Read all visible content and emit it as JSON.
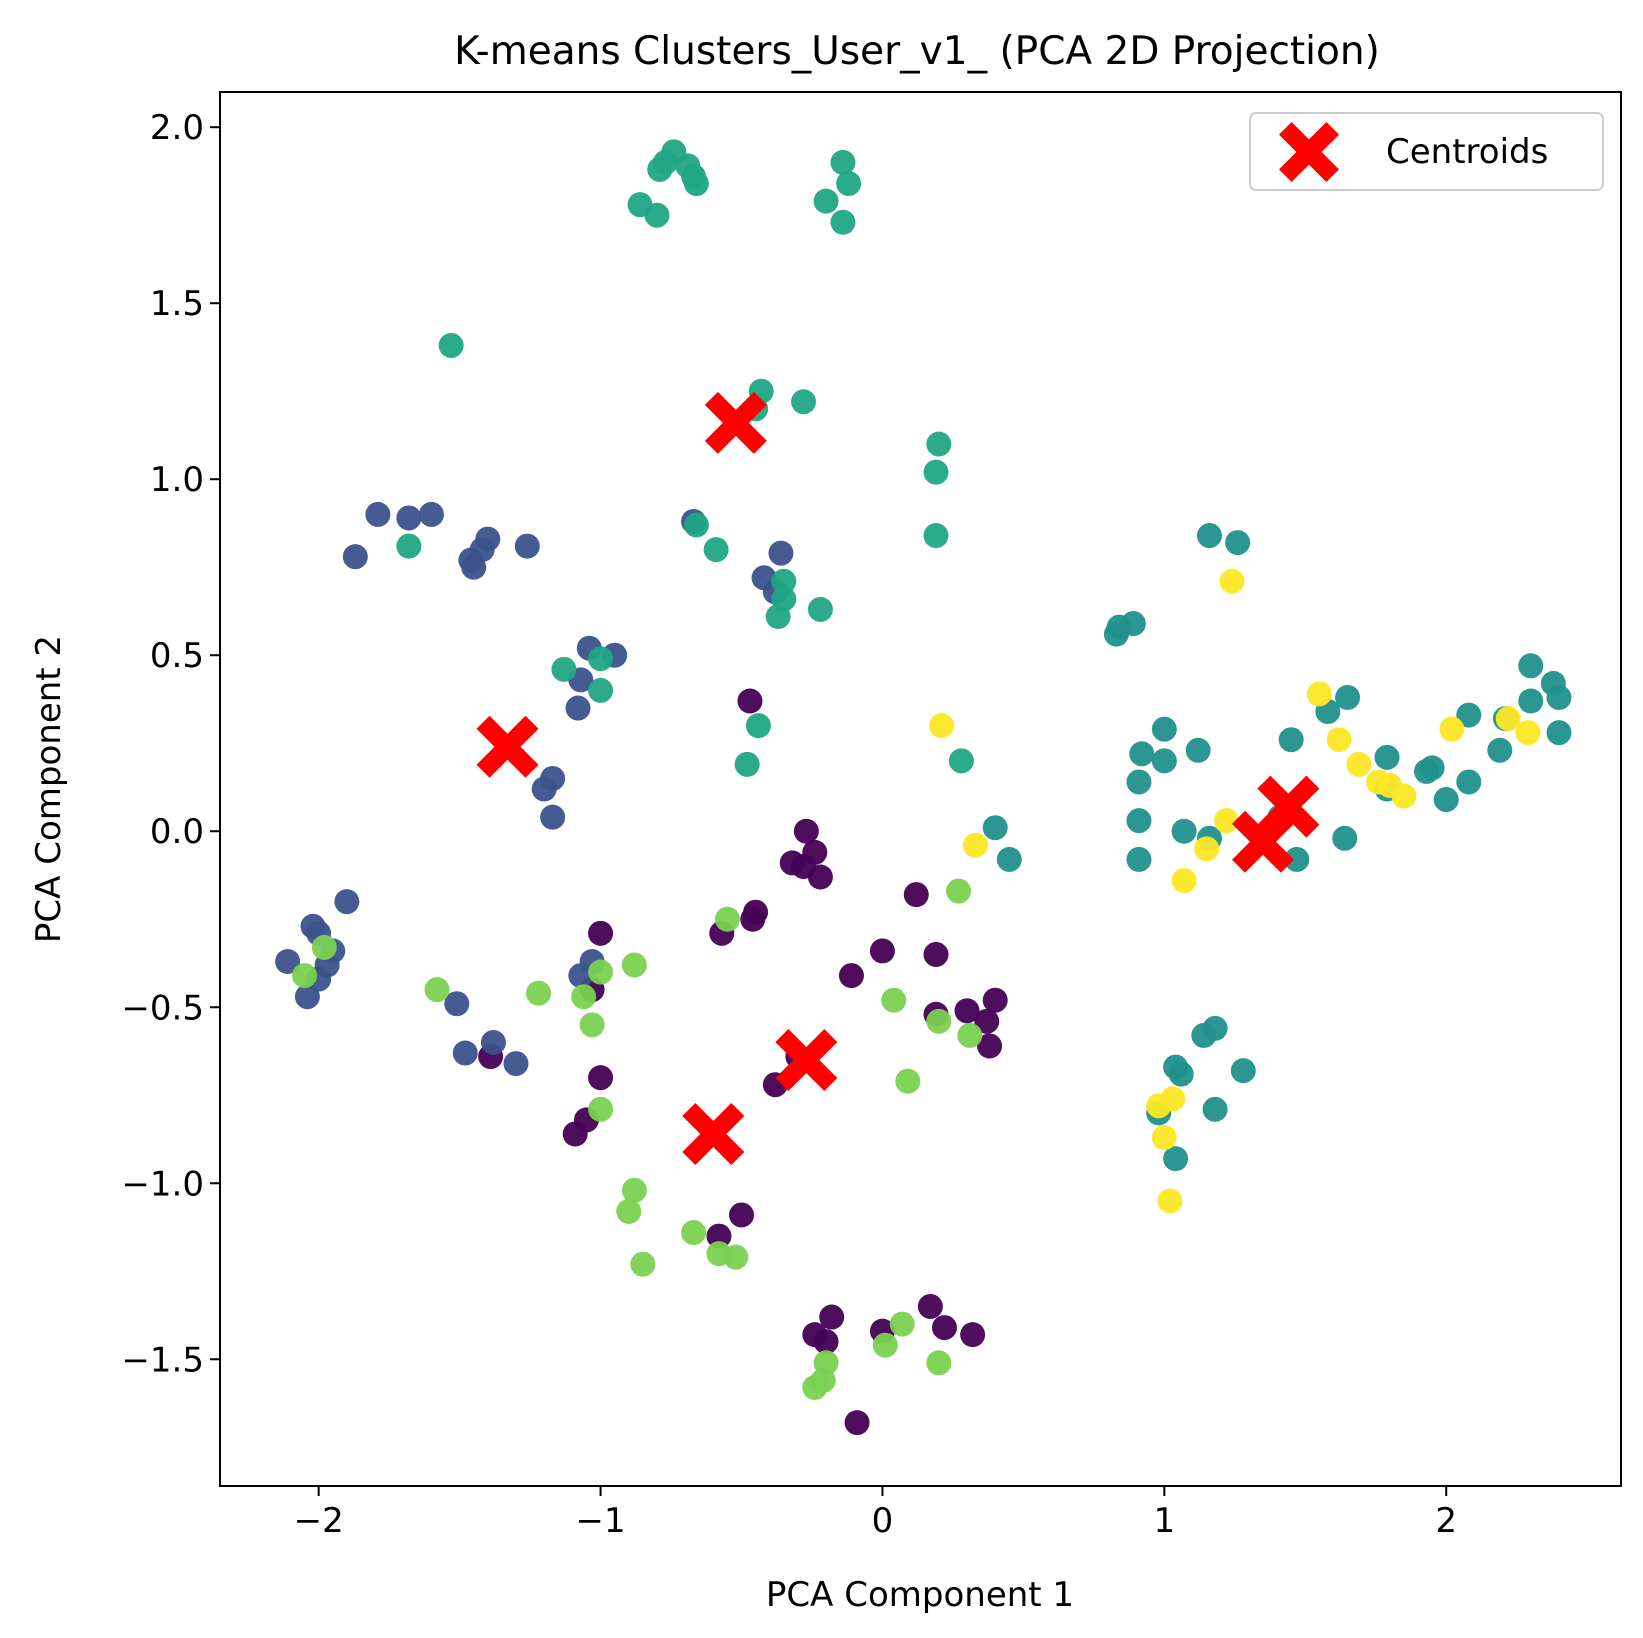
{
  "chart_data": {
    "type": "scatter",
    "title": "K-means Clusters_User_v1_ (PCA 2D Projection)",
    "xlabel": "PCA Component 1",
    "ylabel": "PCA Component 2",
    "xlim": [
      -2.35,
      2.62
    ],
    "ylim": [
      -1.86,
      2.1
    ],
    "xticks": [
      {
        "value": -2,
        "label": "−2"
      },
      {
        "value": -1,
        "label": "−1"
      },
      {
        "value": 0,
        "label": "0"
      },
      {
        "value": 1,
        "label": "1"
      },
      {
        "value": 2,
        "label": "2"
      }
    ],
    "yticks": [
      {
        "value": 2.0,
        "label": "2.0"
      },
      {
        "value": 1.5,
        "label": "1.5"
      },
      {
        "value": 1.0,
        "label": "1.0"
      },
      {
        "value": 0.5,
        "label": "0.5"
      },
      {
        "value": 0.0,
        "label": "0.0"
      },
      {
        "value": -0.5,
        "label": "−0.5"
      },
      {
        "value": -1.0,
        "label": "−1.0"
      },
      {
        "value": -1.5,
        "label": "−1.5"
      }
    ],
    "grid": false,
    "legend": {
      "position": "top-right",
      "entries": [
        "Centroids"
      ]
    },
    "cluster_colors": [
      "#440154",
      "#3b528b",
      "#21908d",
      "#21a685",
      "#7ad151",
      "#fde725"
    ],
    "centroid_color": "#ff0000",
    "series": [
      {
        "cluster": 0,
        "points": [
          [
            -0.47,
            0.37
          ],
          [
            -0.27,
            0.0
          ],
          [
            -0.24,
            -0.06
          ],
          [
            -0.32,
            -0.09
          ],
          [
            -0.22,
            -0.13
          ],
          [
            -0.28,
            -0.1
          ],
          [
            -0.45,
            -0.23
          ],
          [
            -0.46,
            -0.25
          ],
          [
            -0.57,
            -0.29
          ],
          [
            -1.0,
            -0.29
          ],
          [
            0.12,
            -0.18
          ],
          [
            -0.11,
            -0.41
          ],
          [
            0.0,
            -0.34
          ],
          [
            0.19,
            -0.35
          ],
          [
            0.4,
            -0.48
          ],
          [
            0.3,
            -0.51
          ],
          [
            0.37,
            -0.54
          ],
          [
            0.38,
            -0.61
          ],
          [
            0.19,
            -0.52
          ],
          [
            -1.03,
            -0.45
          ],
          [
            -1.0,
            -0.7
          ],
          [
            -1.05,
            -0.82
          ],
          [
            -1.09,
            -0.86
          ],
          [
            -0.38,
            -0.72
          ],
          [
            -0.3,
            -0.64
          ],
          [
            -0.5,
            -1.09
          ],
          [
            -0.58,
            -1.15
          ],
          [
            -0.18,
            -1.38
          ],
          [
            -0.24,
            -1.43
          ],
          [
            -0.2,
            -1.45
          ],
          [
            0.0,
            -1.42
          ],
          [
            0.17,
            -1.35
          ],
          [
            0.22,
            -1.41
          ],
          [
            0.32,
            -1.43
          ],
          [
            -0.09,
            -1.68
          ],
          [
            -1.39,
            -0.64
          ]
        ]
      },
      {
        "cluster": 1,
        "points": [
          [
            -1.87,
            0.78
          ],
          [
            -1.79,
            0.9
          ],
          [
            -1.68,
            0.89
          ],
          [
            -1.6,
            0.9
          ],
          [
            -1.4,
            0.83
          ],
          [
            -1.42,
            0.8
          ],
          [
            -1.46,
            0.77
          ],
          [
            -1.45,
            0.75
          ],
          [
            -1.26,
            0.81
          ],
          [
            -0.67,
            0.88
          ],
          [
            -0.36,
            0.79
          ],
          [
            -0.42,
            0.72
          ],
          [
            -0.38,
            0.68
          ],
          [
            -1.04,
            0.52
          ],
          [
            -0.95,
            0.5
          ],
          [
            -1.07,
            0.43
          ],
          [
            -1.08,
            0.35
          ],
          [
            -1.17,
            0.15
          ],
          [
            -1.2,
            0.12
          ],
          [
            -1.17,
            0.04
          ],
          [
            -1.9,
            -0.2
          ],
          [
            -2.02,
            -0.27
          ],
          [
            -2.0,
            -0.29
          ],
          [
            -1.95,
            -0.34
          ],
          [
            -1.97,
            -0.38
          ],
          [
            -2.11,
            -0.37
          ],
          [
            -2.0,
            -0.42
          ],
          [
            -2.04,
            -0.47
          ],
          [
            -1.51,
            -0.49
          ],
          [
            -1.03,
            -0.37
          ],
          [
            -1.07,
            -0.41
          ],
          [
            -1.38,
            -0.6
          ],
          [
            -1.48,
            -0.63
          ],
          [
            -1.3,
            -0.66
          ]
        ]
      },
      {
        "cluster": 2,
        "points": [
          [
            1.16,
            0.84
          ],
          [
            1.26,
            0.82
          ],
          [
            0.83,
            0.56
          ],
          [
            0.84,
            0.58
          ],
          [
            0.89,
            0.59
          ],
          [
            1.0,
            0.29
          ],
          [
            0.92,
            0.22
          ],
          [
            1.0,
            0.2
          ],
          [
            1.12,
            0.23
          ],
          [
            0.91,
            0.14
          ],
          [
            1.45,
            0.26
          ],
          [
            1.65,
            0.38
          ],
          [
            1.58,
            0.34
          ],
          [
            1.79,
            0.21
          ],
          [
            1.79,
            0.12
          ],
          [
            1.93,
            0.17
          ],
          [
            1.95,
            0.18
          ],
          [
            2.0,
            0.09
          ],
          [
            2.08,
            0.33
          ],
          [
            2.08,
            0.14
          ],
          [
            2.19,
            0.23
          ],
          [
            2.21,
            0.32
          ],
          [
            2.3,
            0.47
          ],
          [
            2.3,
            0.37
          ],
          [
            2.38,
            0.42
          ],
          [
            2.4,
            0.38
          ],
          [
            2.4,
            0.28
          ],
          [
            0.91,
            0.03
          ],
          [
            1.07,
            0.0
          ],
          [
            1.16,
            -0.02
          ],
          [
            1.41,
            0.04
          ],
          [
            1.47,
            -0.08
          ],
          [
            1.64,
            -0.02
          ],
          [
            0.91,
            -0.08
          ],
          [
            0.4,
            0.01
          ],
          [
            0.45,
            -0.08
          ],
          [
            1.14,
            -0.58
          ],
          [
            1.18,
            -0.56
          ],
          [
            1.04,
            -0.67
          ],
          [
            1.06,
            -0.69
          ],
          [
            1.28,
            -0.68
          ],
          [
            0.98,
            -0.8
          ],
          [
            1.18,
            -0.79
          ],
          [
            1.04,
            -0.93
          ]
        ]
      },
      {
        "cluster": 3,
        "points": [
          [
            -0.74,
            1.93
          ],
          [
            -0.77,
            1.9
          ],
          [
            -0.69,
            1.89
          ],
          [
            -0.79,
            1.88
          ],
          [
            -0.67,
            1.86
          ],
          [
            -0.66,
            1.84
          ],
          [
            -0.86,
            1.78
          ],
          [
            -0.8,
            1.75
          ],
          [
            -0.14,
            1.9
          ],
          [
            -0.12,
            1.84
          ],
          [
            -0.2,
            1.79
          ],
          [
            -0.14,
            1.73
          ],
          [
            -1.53,
            1.38
          ],
          [
            -0.43,
            1.25
          ],
          [
            -0.28,
            1.22
          ],
          [
            -0.45,
            1.2
          ],
          [
            0.2,
            1.1
          ],
          [
            0.19,
            1.02
          ],
          [
            0.19,
            0.84
          ],
          [
            -1.68,
            0.81
          ],
          [
            -0.66,
            0.87
          ],
          [
            -0.59,
            0.8
          ],
          [
            -0.35,
            0.71
          ],
          [
            -0.35,
            0.66
          ],
          [
            -0.37,
            0.61
          ],
          [
            -0.22,
            0.63
          ],
          [
            -1.13,
            0.46
          ],
          [
            -1.0,
            0.49
          ],
          [
            -1.0,
            0.4
          ],
          [
            -0.44,
            0.3
          ],
          [
            -0.48,
            0.19
          ],
          [
            0.28,
            0.2
          ]
        ]
      },
      {
        "cluster": 4,
        "points": [
          [
            0.27,
            -0.17
          ],
          [
            -0.55,
            -0.25
          ],
          [
            -2.05,
            -0.41
          ],
          [
            -1.98,
            -0.33
          ],
          [
            -1.58,
            -0.45
          ],
          [
            -1.22,
            -0.46
          ],
          [
            -1.0,
            -0.4
          ],
          [
            -0.88,
            -0.38
          ],
          [
            -1.06,
            -0.47
          ],
          [
            -1.03,
            -0.55
          ],
          [
            0.04,
            -0.48
          ],
          [
            0.2,
            -0.54
          ],
          [
            0.31,
            -0.58
          ],
          [
            0.09,
            -0.71
          ],
          [
            -1.0,
            -0.79
          ],
          [
            -0.88,
            -1.02
          ],
          [
            -0.9,
            -1.08
          ],
          [
            -0.67,
            -1.14
          ],
          [
            -0.58,
            -1.2
          ],
          [
            -0.52,
            -1.21
          ],
          [
            -0.85,
            -1.23
          ],
          [
            0.07,
            -1.4
          ],
          [
            0.01,
            -1.46
          ],
          [
            -0.2,
            -1.51
          ],
          [
            -0.21,
            -1.56
          ],
          [
            -0.24,
            -1.58
          ],
          [
            0.2,
            -1.51
          ]
        ]
      },
      {
        "cluster": 5,
        "points": [
          [
            1.24,
            0.71
          ],
          [
            1.55,
            0.39
          ],
          [
            1.62,
            0.26
          ],
          [
            1.69,
            0.19
          ],
          [
            1.76,
            0.14
          ],
          [
            1.8,
            0.13
          ],
          [
            1.85,
            0.1
          ],
          [
            2.02,
            0.29
          ],
          [
            2.22,
            0.32
          ],
          [
            2.29,
            0.28
          ],
          [
            0.21,
            0.3
          ],
          [
            0.33,
            -0.04
          ],
          [
            1.07,
            -0.14
          ],
          [
            1.15,
            -0.05
          ],
          [
            1.22,
            0.03
          ],
          [
            0.98,
            -0.78
          ],
          [
            1.03,
            -0.76
          ],
          [
            1.0,
            -0.87
          ],
          [
            1.02,
            -1.05
          ]
        ]
      }
    ],
    "centroids": [
      [
        -0.52,
        1.16
      ],
      [
        -1.33,
        0.24
      ],
      [
        -0.27,
        -0.65
      ],
      [
        -0.6,
        -0.86
      ],
      [
        1.44,
        0.07
      ],
      [
        1.35,
        -0.03
      ]
    ]
  }
}
